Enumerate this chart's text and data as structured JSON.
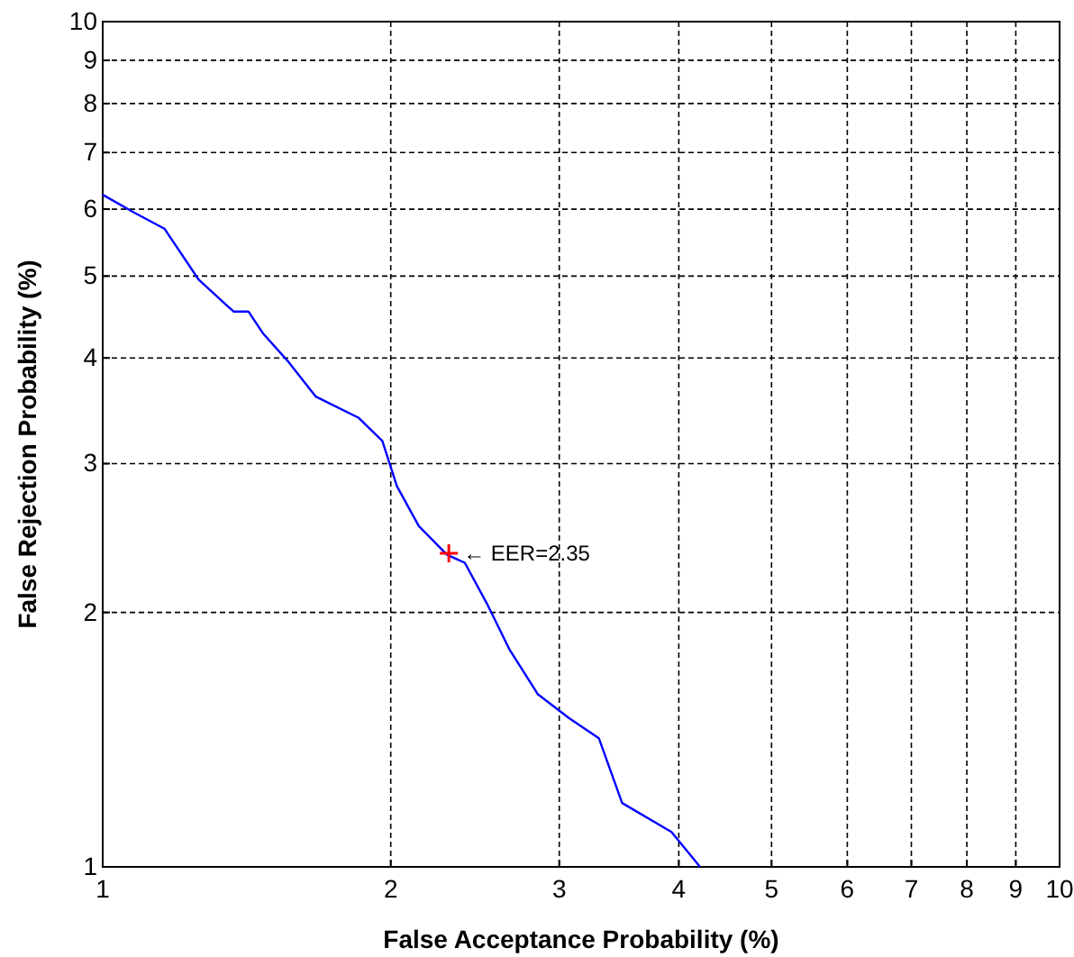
{
  "chart_data": {
    "type": "line",
    "xlabel": "False Acceptance Probability (%)",
    "ylabel": "False Rejection Probability (%)",
    "log": "xy",
    "grid": true,
    "xlim": [
      1,
      10
    ],
    "ylim": [
      1,
      10
    ],
    "xticks": [
      1,
      2,
      3,
      4,
      5,
      6,
      7,
      8,
      9,
      10
    ],
    "yticks": [
      1,
      2,
      3,
      4,
      5,
      6,
      7,
      8,
      9,
      10
    ],
    "series": [
      {
        "color": "#0000ff",
        "marker": "none",
        "x": [
          1.0,
          1.08,
          1.16,
          1.26,
          1.37,
          1.42,
          1.47,
          1.56,
          1.67,
          1.85,
          1.96,
          2.03,
          2.14,
          2.29,
          2.39,
          2.52,
          2.66,
          2.85,
          3.07,
          3.3,
          3.49,
          3.93,
          4.21
        ],
        "values": [
          6.24,
          5.94,
          5.69,
          4.95,
          4.54,
          4.54,
          4.28,
          3.97,
          3.6,
          3.4,
          3.19,
          2.82,
          2.53,
          2.34,
          2.29,
          2.05,
          1.81,
          1.6,
          1.5,
          1.42,
          1.19,
          1.1,
          1.0
        ]
      },
      {
        "type": "scatter",
        "color": "#ff0000",
        "marker": "cross",
        "x": [
          2.3
        ],
        "values": [
          2.35
        ]
      }
    ],
    "annotations": [
      {
        "text": "← EER=2.35",
        "x": 2.3,
        "y": 2.35
      }
    ]
  }
}
